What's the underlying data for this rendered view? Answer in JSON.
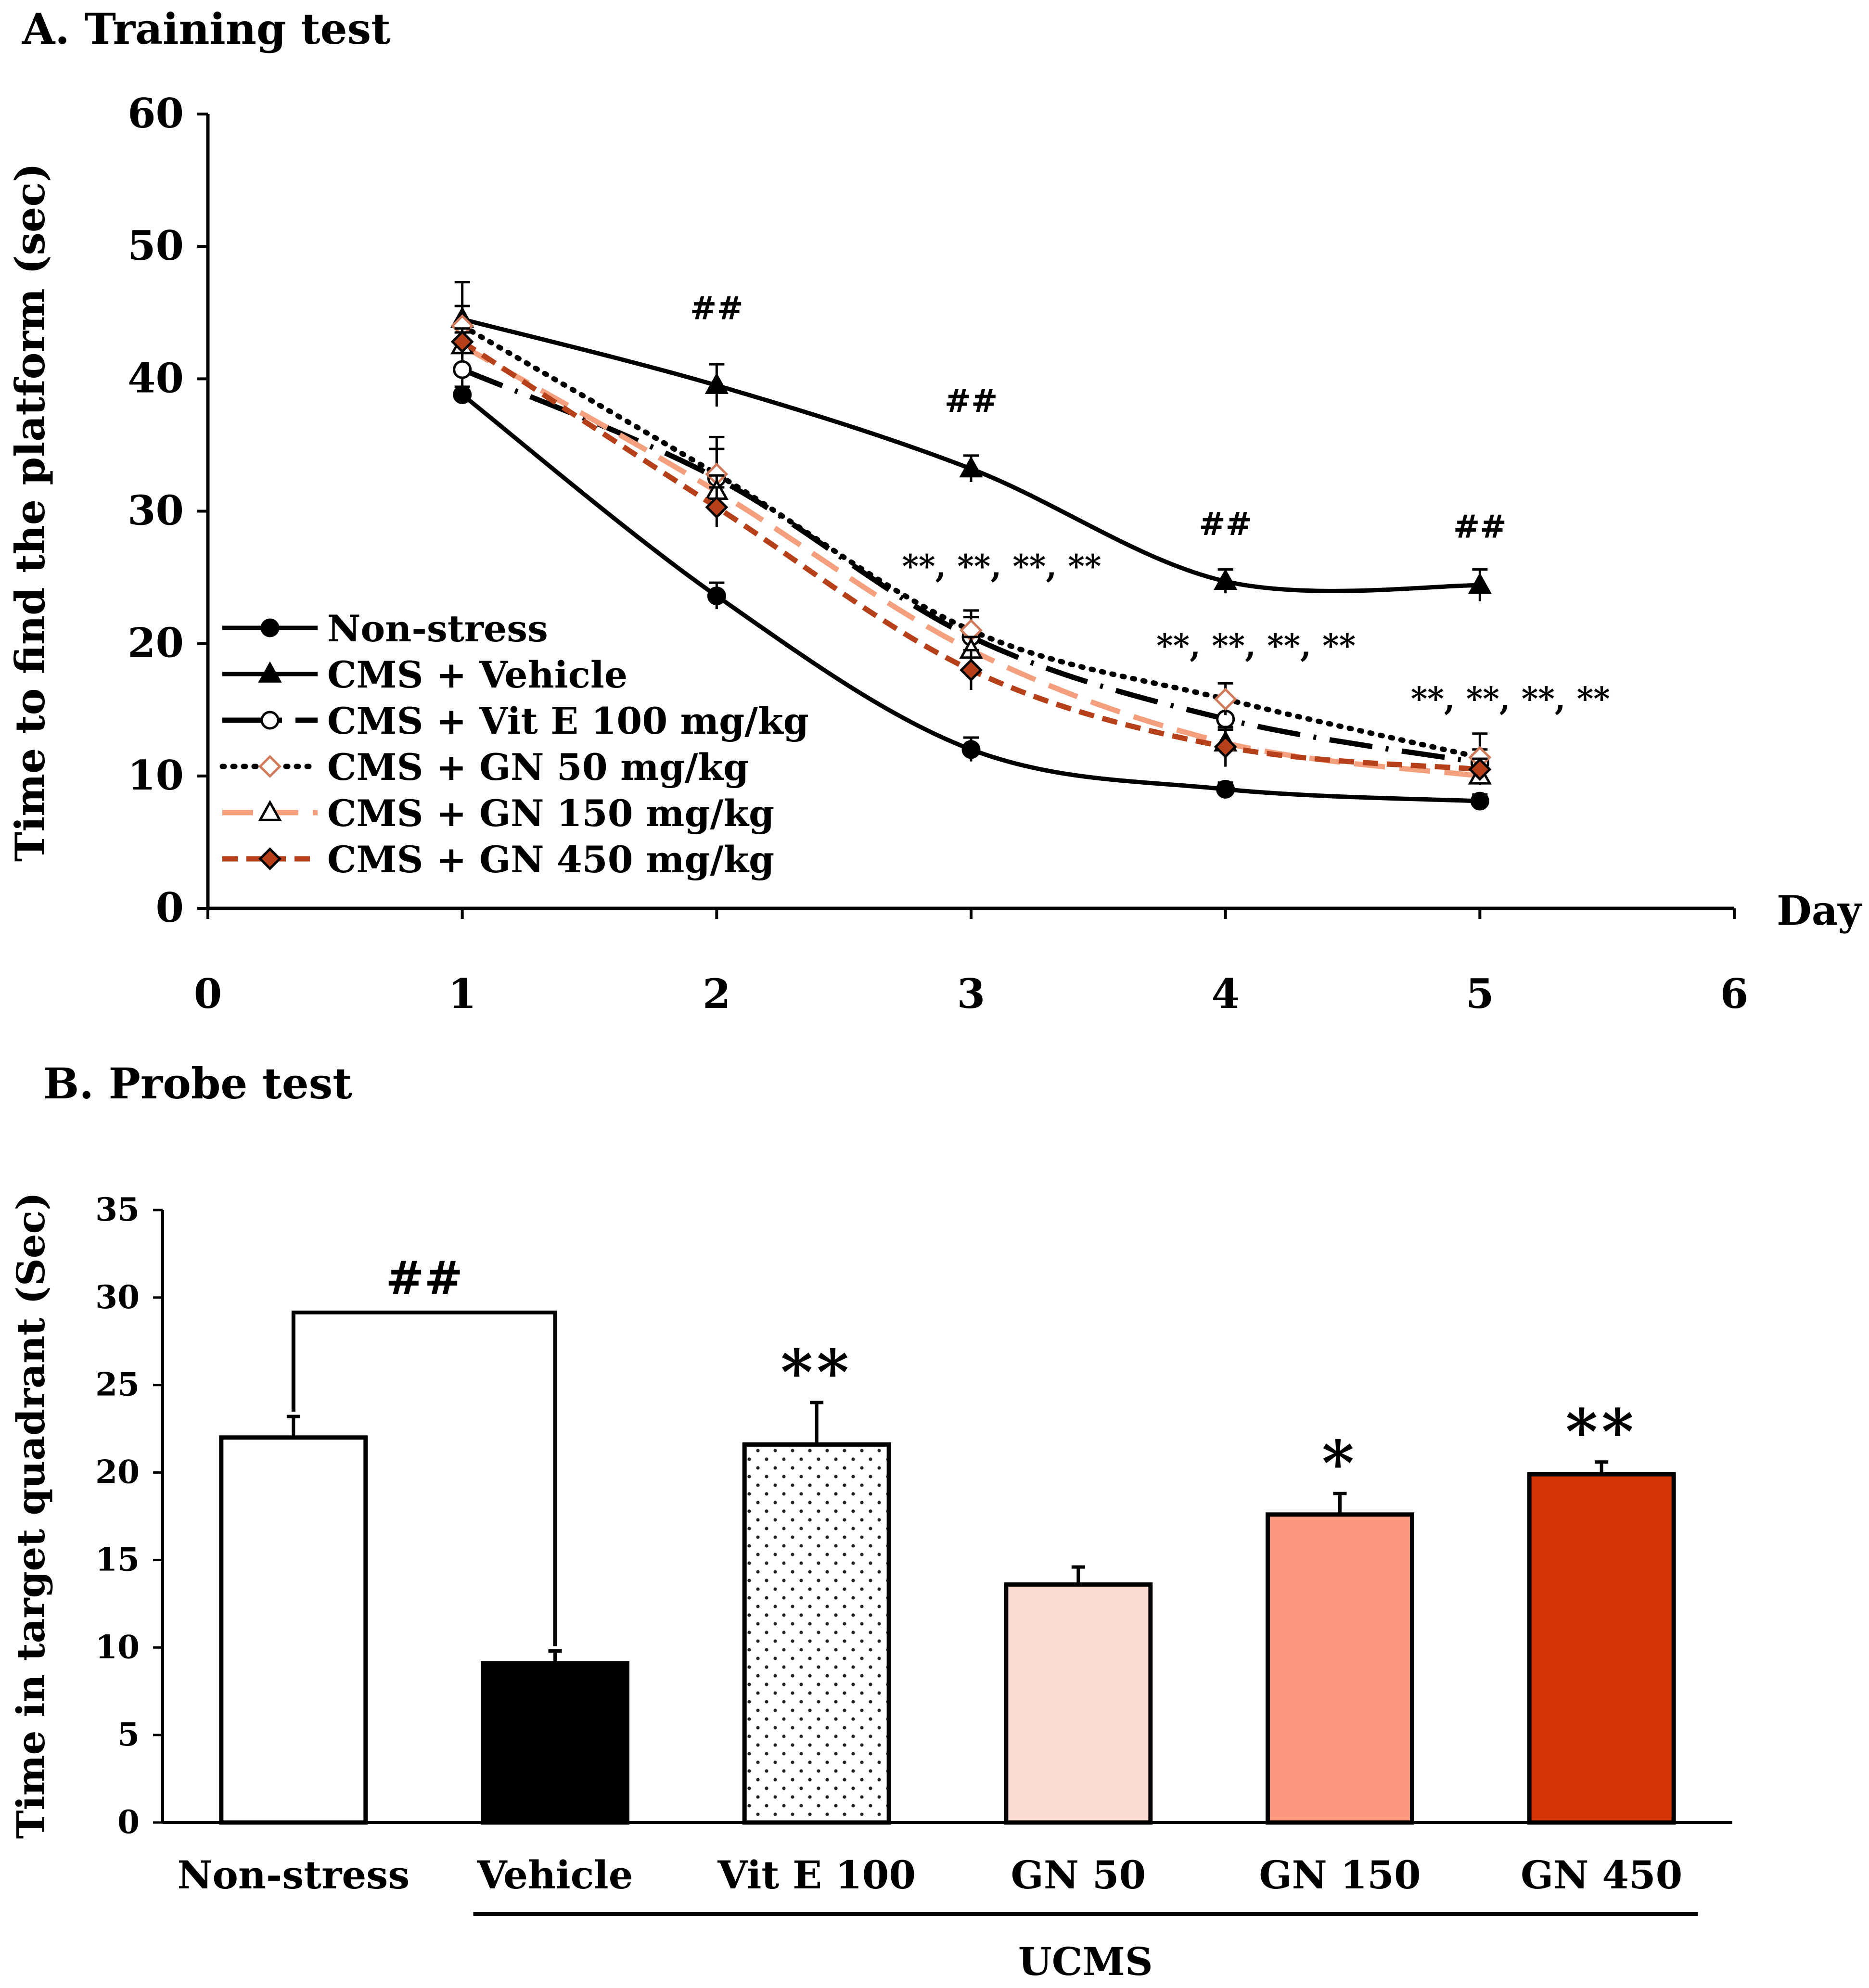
{
  "chart_data": [
    {
      "type": "line",
      "panel": "A",
      "title": "A. Training test",
      "xlabel": "Day",
      "ylabel": "Time to find the platform (sec)",
      "xlim": [
        0,
        6
      ],
      "ylim": [
        0,
        60
      ],
      "x_ticks": [
        0,
        1,
        2,
        3,
        4,
        5,
        6
      ],
      "y_ticks": [
        0,
        10,
        20,
        30,
        40,
        50,
        60
      ],
      "legend_position": "bottom-left",
      "x": [
        1,
        2,
        3,
        4,
        5
      ],
      "series": [
        {
          "name": "Non-stress",
          "marker": "circle-filled",
          "line": "solid",
          "color": "#000000",
          "values": [
            38.8,
            23.6,
            12.0,
            9.0,
            8.1
          ],
          "errors": [
            0.6,
            1.0,
            0.9,
            0.5,
            0.5
          ]
        },
        {
          "name": "CMS + Vehicle",
          "marker": "triangle-filled",
          "line": "solid",
          "color": "#000000",
          "values": [
            44.5,
            39.5,
            33.2,
            24.7,
            24.4
          ],
          "errors": [
            2.8,
            1.6,
            1.0,
            0.9,
            1.2
          ]
        },
        {
          "name": "CMS + Vit E 100 mg/kg",
          "marker": "circle-open",
          "line": "long-dash-dot",
          "color": "#000000",
          "values": [
            40.7,
            32.5,
            20.5,
            14.3,
            11.0
          ],
          "errors": [
            2.2,
            2.2,
            1.5,
            1.3,
            1.0
          ]
        },
        {
          "name": "CMS + GN 50 mg/kg",
          "marker": "diamond-open",
          "line": "dotted",
          "color": "#000000",
          "values": [
            44.0,
            32.8,
            21.0,
            15.8,
            11.4
          ],
          "errors": [
            1.5,
            2.8,
            1.5,
            1.2,
            1.8
          ]
        },
        {
          "name": "CMS + GN 150 mg/kg",
          "marker": "triangle-open",
          "line": "long-dash",
          "color": "#f4a07e",
          "values": [
            42.5,
            31.5,
            19.5,
            12.5,
            10.0
          ],
          "errors": [
            1.0,
            1.2,
            1.0,
            1.0,
            0.7
          ]
        },
        {
          "name": "CMS + GN 450 mg/kg",
          "marker": "diamond-filled",
          "line": "dashed",
          "color": "#b5401a",
          "values": [
            42.8,
            30.3,
            18.0,
            12.2,
            10.5
          ],
          "errors": [
            1.0,
            1.5,
            1.5,
            1.5,
            0.8
          ]
        }
      ],
      "annotations": [
        {
          "x": 2,
          "y": 44.5,
          "text": "##"
        },
        {
          "x": 3,
          "y": 37.5,
          "text": "##"
        },
        {
          "x": 4,
          "y": 28.2,
          "text": "##"
        },
        {
          "x": 5,
          "y": 28.0,
          "text": "##"
        },
        {
          "x": 3.12,
          "y": 25.0,
          "text": "**, **, **, **"
        },
        {
          "x": 4.12,
          "y": 19.0,
          "text": "**, **, **, **"
        },
        {
          "x": 5.12,
          "y": 15.0,
          "text": "**, **, **, **"
        }
      ]
    },
    {
      "type": "bar",
      "panel": "B",
      "title": "B. Probe test",
      "xlabel": "",
      "ylabel": "Time in target quadrant (Sec)",
      "ylim": [
        0,
        35
      ],
      "y_ticks": [
        0,
        5,
        10,
        15,
        20,
        25,
        30,
        35
      ],
      "categories": [
        "Non-stress",
        "Vehicle",
        "Vit E 100",
        "GN 50",
        "GN 150",
        "GN 450"
      ],
      "values": [
        22.0,
        9.1,
        21.6,
        13.6,
        17.6,
        19.9
      ],
      "errors": [
        1.2,
        0.7,
        2.4,
        1.0,
        1.2,
        0.7
      ],
      "colors": [
        "#ffffff",
        "#000000",
        "dotted",
        "#fcdcd2",
        "#fa977c",
        "#d63508"
      ],
      "significance": [
        "",
        "",
        "**",
        "",
        "*",
        "**"
      ],
      "comparison_bracket": {
        "from": "Non-stress",
        "to": "Vehicle",
        "text": "##"
      },
      "group_label": {
        "text": "UCMS",
        "from": "Vehicle",
        "to": "GN 450"
      }
    }
  ]
}
